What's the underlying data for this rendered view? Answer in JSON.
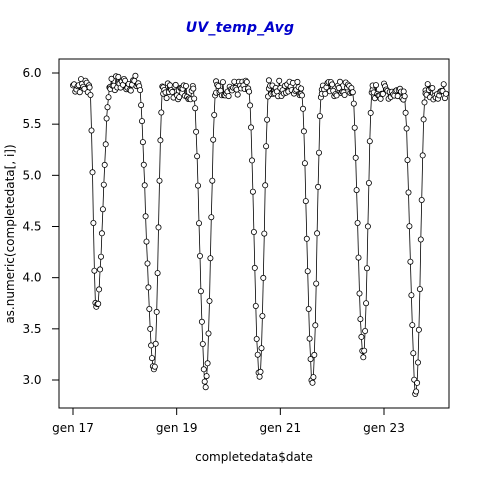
{
  "chart_data": {
    "type": "line",
    "title": "UV_temp_Avg",
    "xlabel": "completedata$date",
    "ylabel": "as.numeric(completedata[, i])",
    "xlim": [
      0,
      7.5
    ],
    "ylim": [
      2.75,
      6.15
    ],
    "x_ticks": [
      0,
      2,
      4,
      6
    ],
    "x_tick_labels": [
      "gen 17",
      "gen 19",
      "gen 21",
      "gen 23"
    ],
    "y_ticks": [
      3.0,
      3.5,
      4.0,
      4.5,
      5.0,
      5.5,
      6.0
    ],
    "y_tick_labels": [
      "3.0",
      "3.5",
      "4.0",
      "4.5",
      "5.0",
      "5.5",
      "6.0"
    ],
    "grid": false,
    "legend": "none",
    "marker": "open-circle",
    "colors": {
      "title": "#0000cc",
      "line": "#000000",
      "frame": "#000000"
    },
    "cycles": [
      {
        "start": 0.0,
        "plateau_end": 0.32,
        "min_at": 0.45,
        "min": 3.68,
        "recover_end": 0.72,
        "level": 5.88
      },
      {
        "start": 0.72,
        "plateau_end": 1.26,
        "min_at": 1.56,
        "min": 3.1,
        "recover_end": 1.74,
        "level": 5.9
      },
      {
        "start": 1.74,
        "plateau_end": 2.32,
        "min_at": 2.56,
        "min": 2.97,
        "recover_end": 2.76,
        "level": 5.82
      },
      {
        "start": 2.76,
        "plateau_end": 3.38,
        "min_at": 3.6,
        "min": 3.02,
        "recover_end": 3.78,
        "level": 5.85
      },
      {
        "start": 3.78,
        "plateau_end": 4.4,
        "min_at": 4.62,
        "min": 2.98,
        "recover_end": 4.8,
        "level": 5.85
      },
      {
        "start": 4.8,
        "plateau_end": 5.38,
        "min_at": 5.6,
        "min": 3.22,
        "recover_end": 5.78,
        "level": 5.84
      },
      {
        "start": 5.78,
        "plateau_end": 6.38,
        "min_at": 6.62,
        "min": 2.86,
        "recover_end": 6.8,
        "level": 5.82
      },
      {
        "start": 6.8,
        "plateau_end": 7.2,
        "min_at": 7.2,
        "min": 5.75,
        "recover_end": 7.2,
        "level": 5.82
      }
    ]
  }
}
